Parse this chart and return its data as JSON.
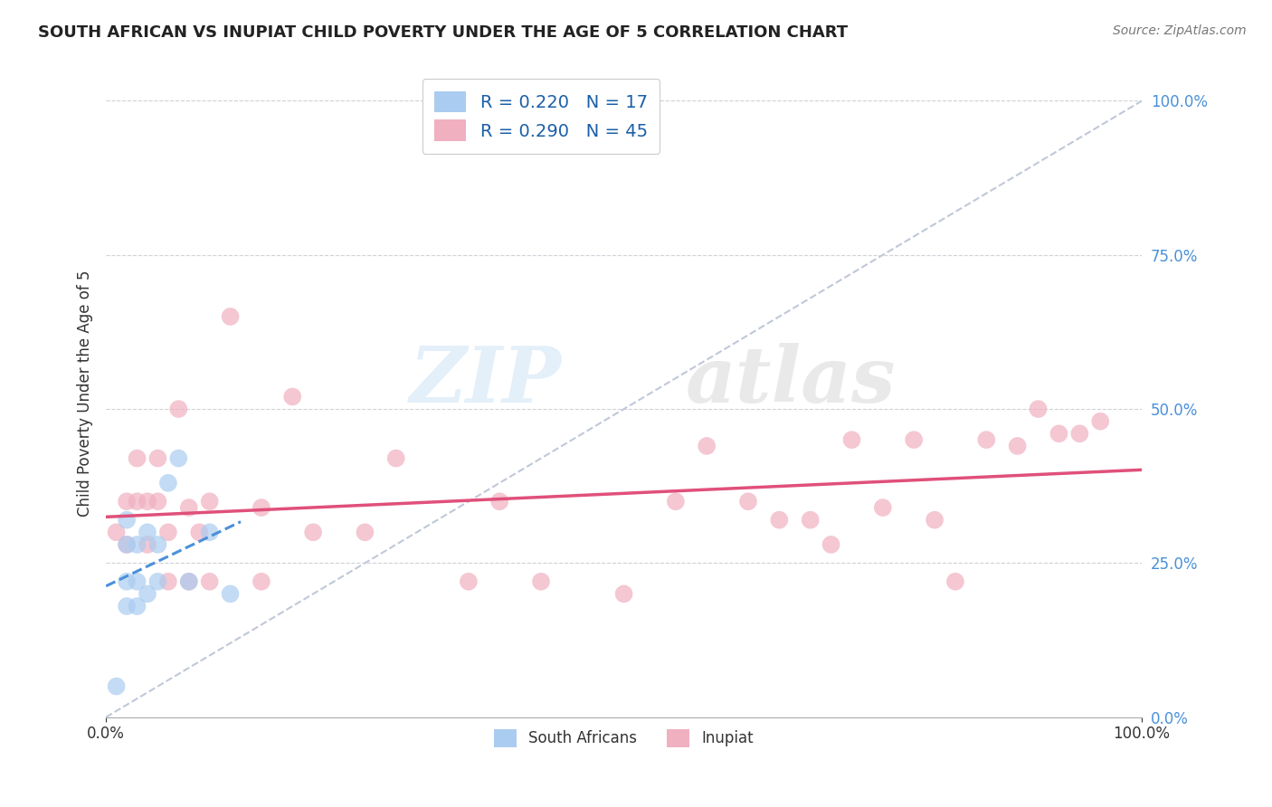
{
  "title": "SOUTH AFRICAN VS INUPIAT CHILD POVERTY UNDER THE AGE OF 5 CORRELATION CHART",
  "source": "Source: ZipAtlas.com",
  "ylabel": "Child Poverty Under the Age of 5",
  "xlim": [
    0,
    1.0
  ],
  "ylim": [
    0,
    1.05
  ],
  "ytick_values": [
    0.0,
    0.25,
    0.5,
    0.75,
    1.0
  ],
  "grid_color": "#cccccc",
  "background_color": "#ffffff",
  "south_african_color": "#aaccf0",
  "south_african_line_color": "#4a90d9",
  "south_african_R": 0.22,
  "south_african_N": 17,
  "inupiat_color": "#f0b0c0",
  "inupiat_line_color": "#e0507a",
  "inupiat_R": 0.29,
  "inupiat_N": 45,
  "south_african_x": [
    0.01,
    0.02,
    0.02,
    0.02,
    0.02,
    0.03,
    0.03,
    0.03,
    0.04,
    0.04,
    0.05,
    0.05,
    0.06,
    0.07,
    0.08,
    0.1,
    0.12
  ],
  "south_african_y": [
    0.05,
    0.32,
    0.28,
    0.22,
    0.18,
    0.28,
    0.22,
    0.18,
    0.3,
    0.2,
    0.28,
    0.22,
    0.38,
    0.42,
    0.22,
    0.3,
    0.2
  ],
  "inupiat_x": [
    0.01,
    0.02,
    0.02,
    0.03,
    0.03,
    0.04,
    0.04,
    0.05,
    0.05,
    0.06,
    0.06,
    0.07,
    0.08,
    0.08,
    0.09,
    0.1,
    0.1,
    0.12,
    0.15,
    0.15,
    0.18,
    0.2,
    0.25,
    0.28,
    0.35,
    0.38,
    0.42,
    0.5,
    0.55,
    0.58,
    0.62,
    0.65,
    0.68,
    0.7,
    0.72,
    0.75,
    0.78,
    0.8,
    0.82,
    0.85,
    0.88,
    0.9,
    0.92,
    0.94,
    0.96
  ],
  "inupiat_y": [
    0.3,
    0.35,
    0.28,
    0.42,
    0.35,
    0.35,
    0.28,
    0.42,
    0.35,
    0.3,
    0.22,
    0.5,
    0.34,
    0.22,
    0.3,
    0.35,
    0.22,
    0.65,
    0.34,
    0.22,
    0.52,
    0.3,
    0.3,
    0.42,
    0.22,
    0.35,
    0.22,
    0.2,
    0.35,
    0.44,
    0.35,
    0.32,
    0.32,
    0.28,
    0.45,
    0.34,
    0.45,
    0.32,
    0.22,
    0.45,
    0.44,
    0.5,
    0.46,
    0.46,
    0.48
  ]
}
